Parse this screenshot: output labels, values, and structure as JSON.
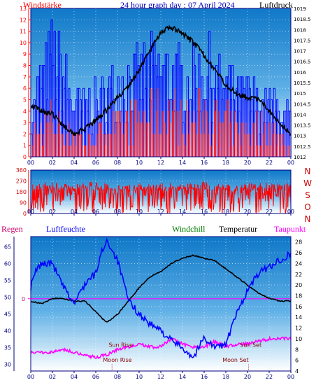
{
  "header": {
    "left_title": "Windstärke",
    "center_title": "24 hour graph day : 07 April 2024",
    "right_title": "Luftdruck"
  },
  "legend": {
    "regen": "Regen",
    "luftfeuchte": "Luftfeuchte",
    "windchill": "Windchill",
    "temperatur": "Temperatur",
    "taupunkt": "Taupunkt"
  },
  "colors": {
    "wind_left_axis": "#ff0000",
    "pressure_right_axis": "#000000",
    "wind_speed": "#ff0000",
    "wind_gust": "#0000ff",
    "pressure": "#000000",
    "direction": "#ff0000",
    "humidity": "#0000ff",
    "temperature": "#000000",
    "dewpoint": "#ff00ff",
    "rain": "#ff0000",
    "plot_bg_top": "#1e8fd6",
    "plot_bg_bottom": "#ffffff"
  },
  "events": {
    "sun_rise": "Sun Rise",
    "moon_rise": "Moon Rise",
    "sun_set": "Sun Set",
    "moon_set": "Moon Set"
  },
  "chart_data": [
    {
      "id": "wind-pressure",
      "type": "line",
      "title": "24 hour graph day : 07 April 2024",
      "x_ticks": [
        "00",
        "02",
        "04",
        "06",
        "08",
        "10",
        "12",
        "14",
        "16",
        "18",
        "20",
        "22",
        "00"
      ],
      "left_axis": {
        "label": "Windstärke",
        "ylim": [
          0,
          13
        ],
        "ticks": [
          0,
          1,
          2,
          3,
          4,
          5,
          6,
          7,
          8,
          9,
          10,
          11,
          12,
          13
        ]
      },
      "right_axis": {
        "label": "Luftdruck",
        "ylim": [
          1012,
          1019
        ],
        "ticks": [
          "1012",
          "1012.5",
          "1013",
          "1013.5",
          "1014",
          "1014.5",
          "1015",
          "1015.5",
          "1016",
          "1016.5",
          "1017",
          "1017.5",
          "1018",
          "1018.5",
          "1019"
        ]
      },
      "series": [
        {
          "name": "Luftdruck",
          "axis": "right",
          "x": [
            0,
            1,
            2,
            3,
            4,
            5,
            6,
            7,
            8,
            9,
            10,
            11,
            12,
            13,
            14,
            15,
            16,
            17,
            18,
            19,
            20,
            21,
            22,
            23,
            24
          ],
          "values": [
            1014.4,
            1014.2,
            1014.0,
            1013.5,
            1013.1,
            1013.3,
            1013.7,
            1014.2,
            1014.8,
            1015.3,
            1016.1,
            1017.0,
            1017.9,
            1018.1,
            1017.8,
            1017.4,
            1016.8,
            1016.1,
            1015.4,
            1015.0,
            1014.8,
            1014.7,
            1014.2,
            1013.6,
            1013.1
          ]
        },
        {
          "name": "Wind speed",
          "axis": "left",
          "x": [
            0,
            1,
            2,
            3,
            4,
            5,
            6,
            7,
            8,
            9,
            10,
            11,
            12,
            13,
            14,
            15,
            16,
            17,
            18,
            19,
            20,
            21,
            22,
            23,
            24
          ],
          "values": [
            2,
            3,
            4,
            3,
            2,
            2,
            2,
            3,
            3,
            4,
            4,
            5,
            5,
            5,
            4,
            4,
            5,
            4,
            4,
            3,
            3,
            3,
            3,
            2,
            1
          ]
        },
        {
          "name": "Wind gust",
          "axis": "left",
          "x": [
            0,
            1,
            2,
            3,
            4,
            5,
            6,
            7,
            8,
            9,
            10,
            11,
            12,
            13,
            14,
            15,
            16,
            17,
            18,
            19,
            20,
            21,
            22,
            23,
            24
          ],
          "values": [
            5,
            9,
            12,
            9,
            6,
            6,
            6,
            7,
            8,
            9,
            9,
            10,
            10,
            9,
            9,
            9,
            10,
            9,
            8,
            7,
            7,
            6,
            6,
            5,
            4
          ]
        }
      ]
    },
    {
      "id": "wind-direction",
      "type": "line",
      "x_ticks": [
        "00",
        "02",
        "04",
        "06",
        "08",
        "10",
        "12",
        "14",
        "16",
        "18",
        "20",
        "22",
        "00"
      ],
      "left_axis": {
        "ylim": [
          0,
          360
        ],
        "ticks": [
          0,
          90,
          180,
          270,
          360
        ]
      },
      "right_axis": {
        "ticks": [
          "N",
          "O",
          "S",
          "W",
          "N"
        ]
      },
      "series": [
        {
          "name": "Direction range",
          "x": [
            0,
            2,
            4,
            6,
            8,
            10,
            12,
            14,
            16,
            18,
            20,
            22,
            24
          ],
          "values": [
            250,
            260,
            240,
            270,
            230,
            250,
            260,
            250,
            270,
            240,
            250,
            260,
            250
          ]
        }
      ]
    },
    {
      "id": "temp-humidity",
      "type": "line",
      "x_ticks": [
        "00",
        "02",
        "04",
        "06",
        "08",
        "10",
        "12",
        "14",
        "16",
        "18",
        "20",
        "22",
        "00"
      ],
      "left_axis": {
        "label": "Luftfeuchte",
        "ylim": [
          28,
          68
        ],
        "ticks": [
          30,
          35,
          40,
          45,
          50,
          55,
          60,
          65
        ]
      },
      "rain_axis": {
        "label": "Regen",
        "ticks": [
          "0"
        ]
      },
      "right_axis": {
        "label": "Temperatur",
        "ylim": [
          4,
          29
        ],
        "ticks": [
          4,
          6,
          8,
          10,
          12,
          14,
          16,
          18,
          20,
          22,
          24,
          26,
          28
        ]
      },
      "series": [
        {
          "name": "Luftfeuchte",
          "axis": "left",
          "x": [
            0,
            0.5,
            1,
            2,
            3,
            4,
            5,
            6,
            6.5,
            7,
            8,
            9,
            10,
            11,
            12,
            13,
            14,
            15,
            16,
            17,
            18,
            19,
            20,
            21,
            22,
            23,
            24
          ],
          "values": [
            53,
            58,
            60,
            60,
            53,
            48,
            54,
            57,
            63,
            67,
            61,
            49,
            45,
            42,
            40,
            37,
            35,
            32,
            38,
            35,
            36,
            45,
            52,
            57,
            59,
            61,
            63
          ]
        },
        {
          "name": "Temperatur",
          "axis": "right",
          "x": [
            0,
            1,
            2,
            3,
            4,
            5,
            6,
            7,
            8,
            9,
            10,
            11,
            12,
            13,
            14,
            15,
            16,
            17,
            18,
            19,
            20,
            21,
            22,
            23,
            24
          ],
          "values": [
            17,
            16.5,
            17.5,
            17.5,
            17,
            17,
            15,
            13,
            14.5,
            17,
            19.5,
            21.5,
            22.5,
            24,
            25,
            25.5,
            25,
            24.5,
            23,
            21.5,
            20,
            18.5,
            17.5,
            17,
            17
          ]
        },
        {
          "name": "Taupunkt",
          "axis": "right",
          "x": [
            0,
            1,
            2,
            3,
            4,
            5,
            6,
            7,
            8,
            9,
            10,
            11,
            12,
            13,
            14,
            15,
            16,
            17,
            18,
            19,
            20,
            21,
            22,
            23,
            24
          ],
          "values": [
            7.5,
            7.5,
            7.5,
            8,
            7.5,
            7,
            6.5,
            7,
            8,
            8.5,
            9,
            8.5,
            8.5,
            10,
            9,
            8.5,
            8.5,
            9.5,
            8.5,
            9,
            9,
            9.5,
            10,
            10,
            10
          ]
        },
        {
          "name": "Regen",
          "axis": "rain",
          "x": [
            0,
            24
          ],
          "values": [
            0,
            0
          ]
        }
      ]
    }
  ]
}
